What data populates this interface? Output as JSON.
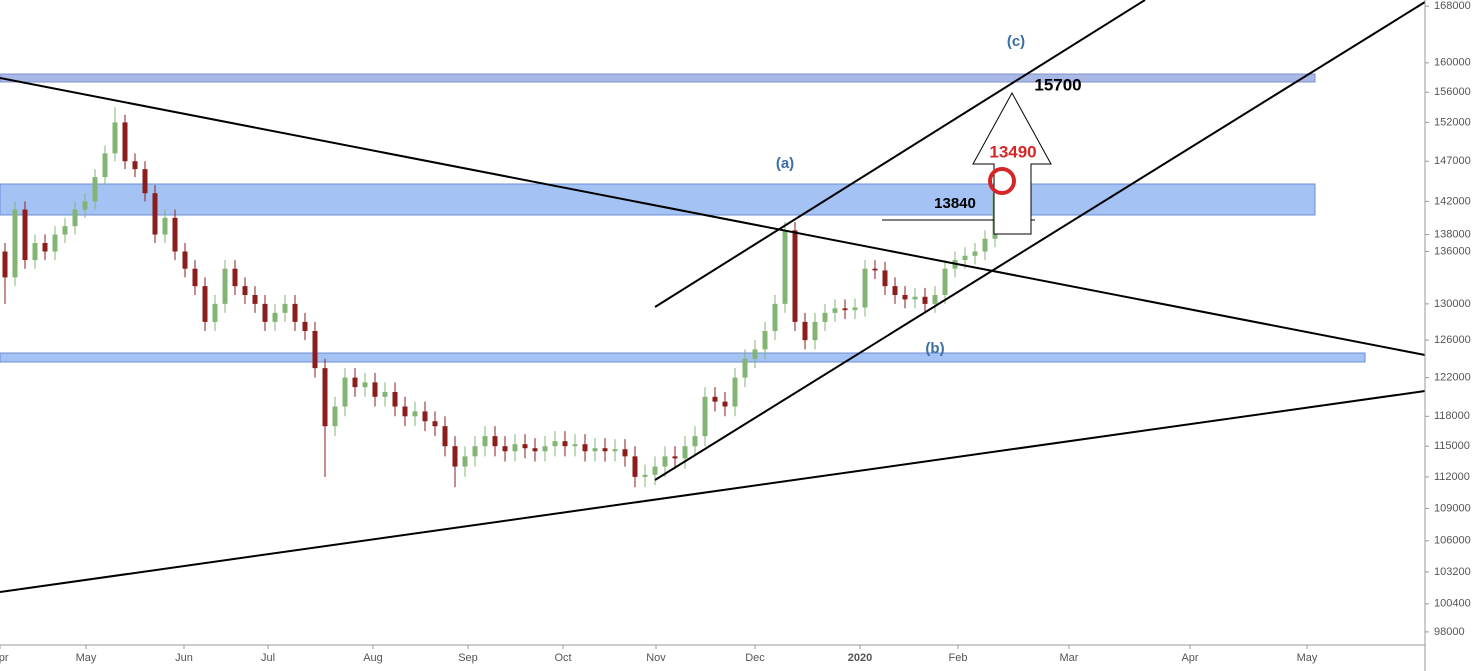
{
  "chart_data": {
    "type": "candlestick",
    "log_scale": true,
    "grid": false,
    "up_color": "#82b574",
    "down_color": "#8b1d1d",
    "xlim": [
      -0.5,
      142
    ],
    "xticks": [
      {
        "value": -0.5,
        "label": "Apr"
      },
      {
        "value": 8.1,
        "label": "May"
      },
      {
        "value": 17.9,
        "label": "Jun"
      },
      {
        "value": 26.3,
        "label": "Jul"
      },
      {
        "value": 36.8,
        "label": "Aug"
      },
      {
        "value": 46.3,
        "label": "Sep"
      },
      {
        "value": 55.8,
        "label": "Oct"
      },
      {
        "value": 65.1,
        "label": "Nov"
      },
      {
        "value": 75,
        "label": "Dec"
      },
      {
        "value": 85.5,
        "label": "2020"
      },
      {
        "value": 95.3,
        "label": "Feb"
      },
      {
        "value": 106.4,
        "label": "Mar"
      },
      {
        "value": 118.5,
        "label": "Apr"
      },
      {
        "value": 130.2,
        "label": "May"
      }
    ],
    "ylim": [
      96900,
      168900
    ],
    "yticks": [
      168000,
      160000,
      156000,
      152000,
      147000,
      142000,
      138000,
      136000,
      130000,
      126000,
      122000,
      118000,
      115000,
      112000,
      109000,
      106000,
      103200,
      100400,
      98000
    ],
    "open": [
      136000,
      133000,
      141000,
      135000,
      137000,
      136000,
      138000,
      139000,
      141000,
      142000,
      145000,
      148000,
      152000,
      147000,
      146000,
      143000,
      138000,
      140000,
      136000,
      134000,
      132000,
      128000,
      130000,
      134000,
      132000,
      131000,
      130000,
      128000,
      129000,
      130000,
      128000,
      127000,
      123000,
      117000,
      119000,
      122000,
      121000,
      121500,
      120000,
      120500,
      119000,
      118000,
      118500,
      117500,
      117000,
      115000,
      113000,
      114000,
      115000,
      116000,
      115000,
      114500,
      115200,
      114800,
      114500,
      115000,
      115500,
      115000,
      115200,
      114500,
      114800,
      114500,
      114700,
      114000,
      112000,
      112200,
      113000,
      114000,
      113800,
      115000,
      116000,
      120000,
      119500,
      119000,
      122000,
      124000,
      125000,
      127000,
      130000,
      138500,
      128000,
      126000,
      128000,
      129000,
      129500,
      129300,
      129600,
      134000,
      133800,
      132000,
      131000,
      130500,
      130800,
      130000,
      131000,
      134000,
      135000,
      135500,
      136000,
      137500
    ],
    "high": [
      137000,
      142000,
      142000,
      138000,
      138000,
      139000,
      140000,
      142000,
      143000,
      146000,
      149000,
      154000,
      153000,
      148000,
      147000,
      144000,
      141000,
      141000,
      137000,
      135000,
      133000,
      131000,
      135000,
      135000,
      133000,
      132000,
      131000,
      130000,
      131000,
      131000,
      129000,
      128000,
      124000,
      120000,
      123000,
      123000,
      122500,
      122500,
      121500,
      121500,
      120000,
      119500,
      119500,
      118500,
      118000,
      116000,
      115000,
      116000,
      117000,
      117000,
      116000,
      116200,
      116200,
      115800,
      116000,
      116500,
      116500,
      116200,
      116200,
      115800,
      115800,
      115700,
      115700,
      115000,
      113200,
      114000,
      115000,
      115000,
      116000,
      117000,
      121000,
      121000,
      120500,
      123000,
      125000,
      126000,
      128000,
      131000,
      139500,
      139500,
      129000,
      129000,
      130000,
      130500,
      130500,
      130600,
      135000,
      135000,
      134800,
      133000,
      132000,
      131800,
      131800,
      132000,
      135000,
      136000,
      136500,
      137000,
      138500,
      144300
    ],
    "low": [
      130000,
      132000,
      134000,
      134000,
      135000,
      135000,
      137000,
      138000,
      140000,
      141000,
      144000,
      147000,
      146000,
      145000,
      142000,
      137000,
      137000,
      135000,
      133000,
      131000,
      127000,
      127000,
      129000,
      131000,
      130000,
      129000,
      127000,
      127000,
      128000,
      127000,
      126000,
      122000,
      112000,
      116000,
      118000,
      120000,
      120000,
      119000,
      119000,
      118000,
      117000,
      117000,
      116500,
      116000,
      114000,
      111000,
      112000,
      113000,
      114000,
      114000,
      113500,
      113500,
      113800,
      113500,
      113500,
      114000,
      114000,
      114000,
      113500,
      113500,
      113500,
      113500,
      113000,
      111000,
      111000,
      111200,
      112000,
      112800,
      112800,
      114000,
      115000,
      118500,
      118000,
      118000,
      121000,
      123000,
      124000,
      126000,
      129000,
      127000,
      125000,
      125000,
      127000,
      128000,
      128300,
      128300,
      128600,
      132800,
      131000,
      130000,
      129500,
      129500,
      129000,
      129000,
      130000,
      133000,
      134000,
      134500,
      135000,
      136500
    ],
    "close": [
      133000,
      141000,
      135000,
      137000,
      136000,
      138000,
      139000,
      141000,
      142000,
      145000,
      148000,
      152000,
      147000,
      146000,
      143000,
      138000,
      140000,
      136000,
      134000,
      132000,
      128000,
      130000,
      134000,
      132000,
      131000,
      130000,
      128000,
      129000,
      130000,
      128000,
      127000,
      123000,
      117000,
      119000,
      122000,
      121000,
      121500,
      120000,
      120500,
      119000,
      118000,
      118500,
      117500,
      117000,
      115000,
      113000,
      114000,
      115000,
      116000,
      115000,
      114500,
      115200,
      114800,
      114500,
      115000,
      115500,
      115000,
      115200,
      114500,
      114800,
      114500,
      114700,
      114000,
      112000,
      112200,
      113000,
      114000,
      113800,
      115000,
      116000,
      120000,
      119500,
      119000,
      122000,
      124000,
      125000,
      127000,
      130000,
      138500,
      128000,
      126000,
      128000,
      129000,
      129500,
      129300,
      129600,
      134000,
      133800,
      132000,
      131000,
      130500,
      130800,
      130000,
      131000,
      134000,
      135000,
      135500,
      136000,
      137500,
      143000
    ],
    "annotations": [
      "(c)",
      "15700",
      "13490",
      "(a)",
      "13840",
      "(b)"
    ]
  }
}
